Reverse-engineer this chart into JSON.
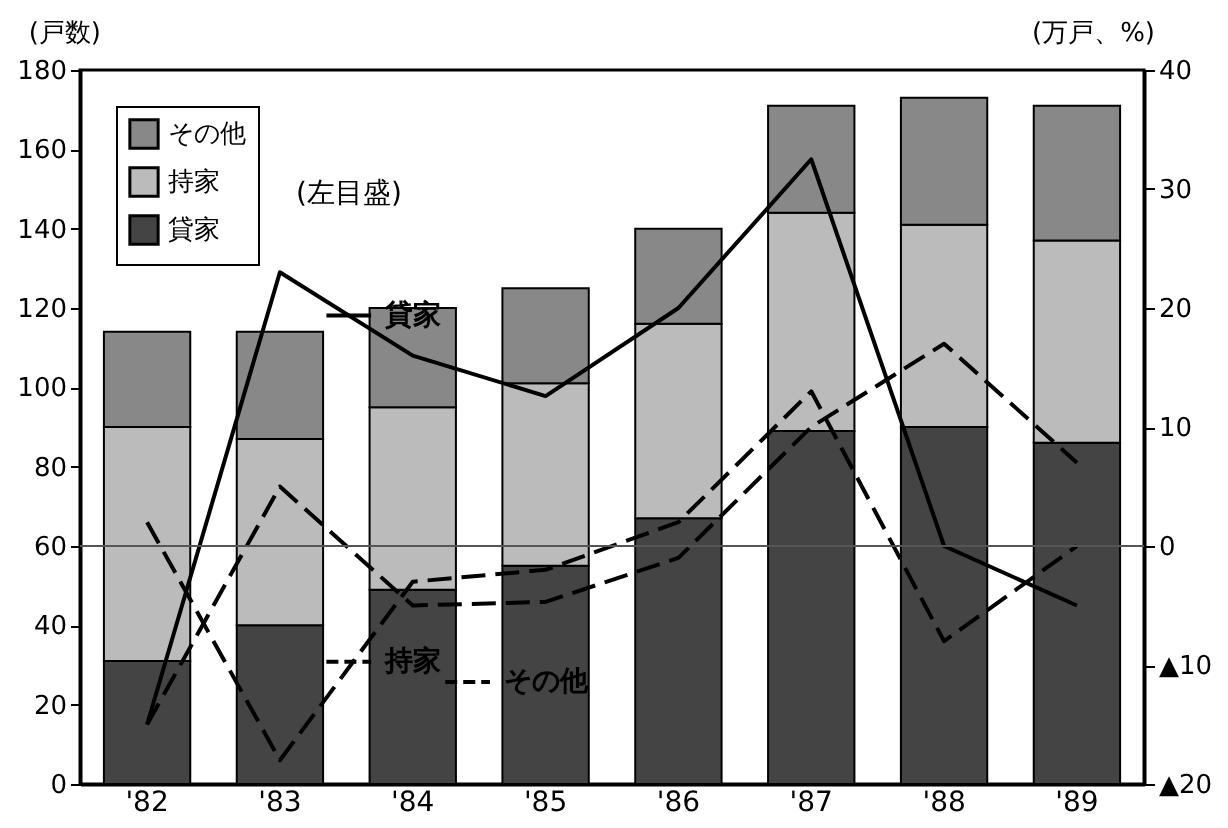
{
  "chart_data": {
    "type": "bar",
    "stacked": true,
    "ylabel": "(戸数)",
    "y2label": "(万戸、%)",
    "categories": [
      "'82",
      "'83",
      "'84",
      "'85",
      "'86",
      "'87",
      "'88",
      "'89"
    ],
    "series": [
      {
        "name": "貸家",
        "color": "#444444",
        "values": [
          31,
          40,
          49,
          55,
          67,
          89,
          90,
          86
        ]
      },
      {
        "name": "持家",
        "color": "#bbbbbb",
        "values": [
          59,
          47,
          46,
          46,
          49,
          55,
          51,
          51
        ]
      },
      {
        "name": "その他",
        "color": "#888888",
        "values": [
          24,
          27,
          25,
          24,
          24,
          27,
          32,
          34
        ]
      },
      {
        "name": "貸家",
        "type": "line",
        "axis": "y2",
        "color": "#000000",
        "line_style": "solid",
        "values": [
          -15,
          23,
          16,
          12.6,
          20,
          32.5,
          0,
          -5
        ]
      },
      {
        "name": "持家",
        "type": "line",
        "axis": "y2",
        "color": "#000000",
        "line_style": "dashed",
        "values": [
          2,
          -18,
          -3,
          -2,
          2,
          13,
          -8,
          0
        ]
      },
      {
        "name": "その他",
        "type": "line",
        "axis": "y2",
        "color": "#000000",
        "line_style": "dashed",
        "values": [
          -15,
          5,
          -5,
          -4.7,
          -1,
          10,
          17,
          7
        ]
      }
    ],
    "ylim": [
      0,
      180
    ],
    "yticks": [
      0,
      20,
      40,
      60,
      80,
      100,
      120,
      140,
      160,
      180
    ],
    "y2lim": [
      -20,
      40
    ],
    "y2ticks": [
      {
        "value": -20,
        "label": "▲20"
      },
      {
        "value": -10,
        "label": "▲10"
      },
      0,
      10,
      20,
      30,
      40
    ],
    "ref_lines": [
      {
        "axis": "y2",
        "value": 0
      }
    ],
    "annotations": [
      "(左目盛)"
    ],
    "legend": "top left",
    "grid": false,
    "marker": "none"
  }
}
